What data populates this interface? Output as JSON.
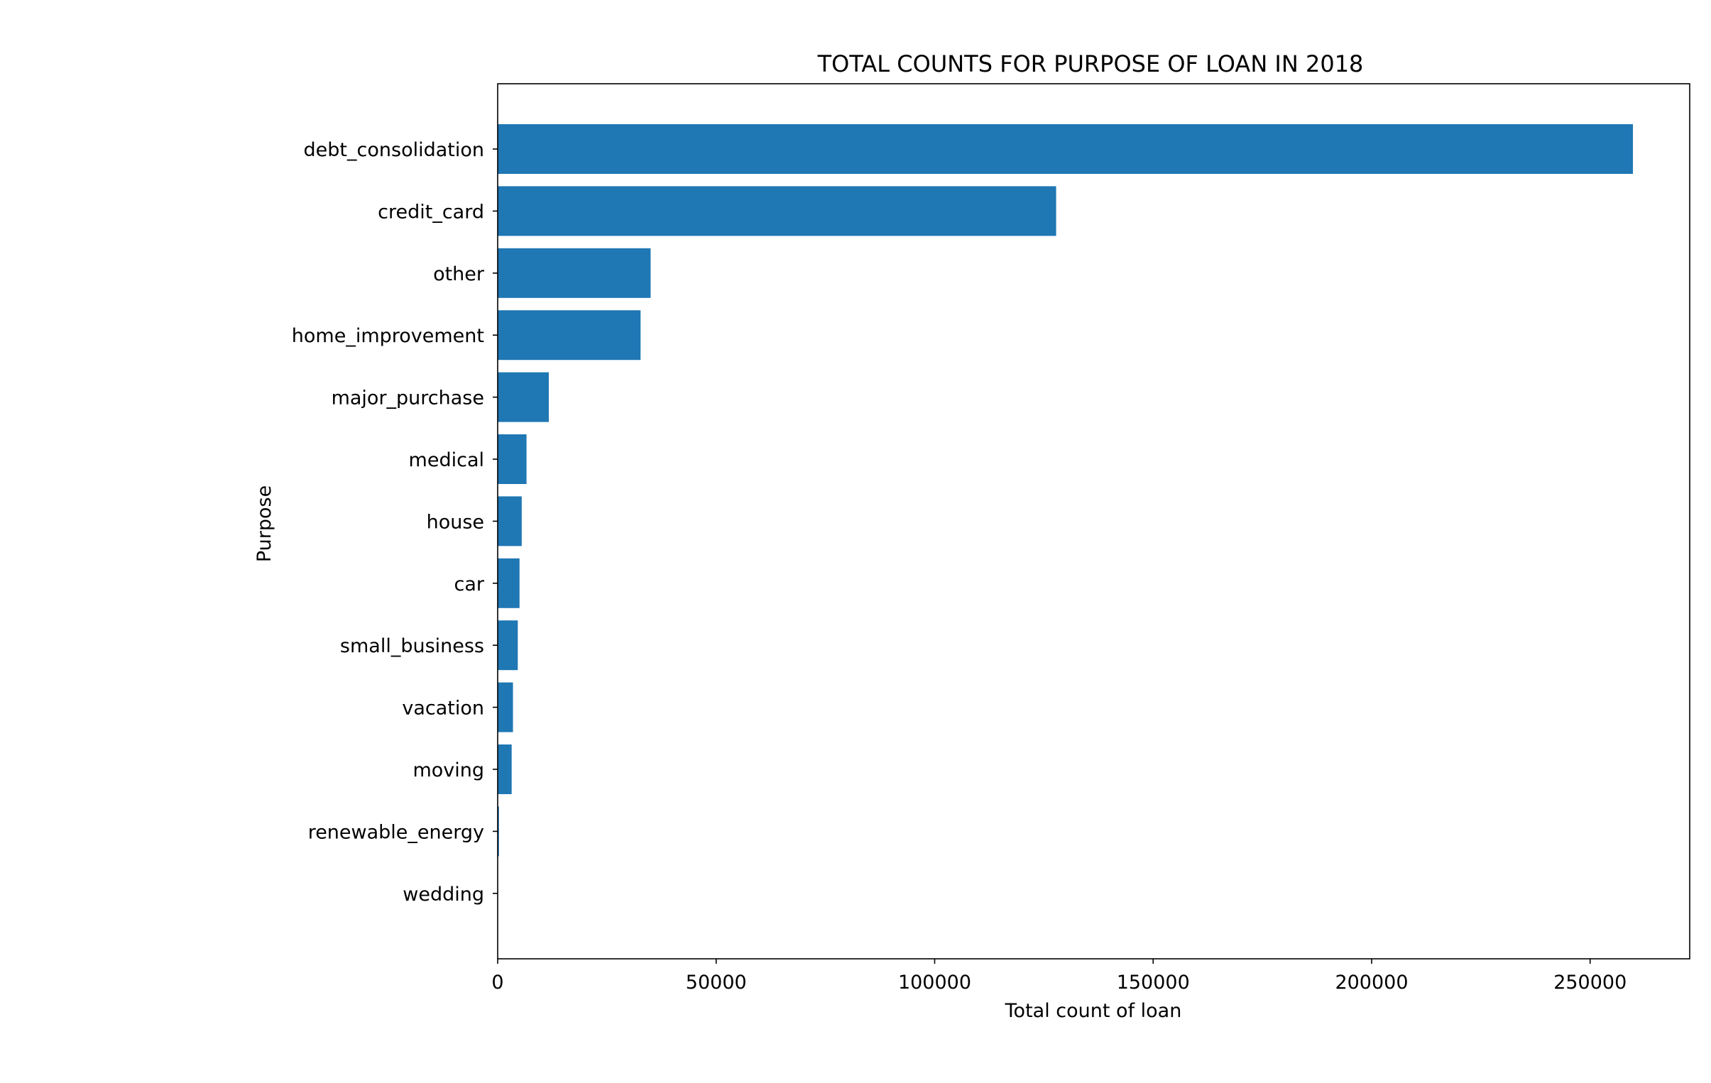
{
  "chart_data": {
    "type": "bar",
    "orientation": "horizontal",
    "title": "TOTAL COUNTS FOR PURPOSE OF LOAN IN 2018",
    "xlabel": "Total count of loan",
    "ylabel": "Purpose",
    "categories": [
      "debt_consolidation",
      "credit_card",
      "other",
      "home_improvement",
      "major_purchase",
      "medical",
      "house",
      "car",
      "small_business",
      "vacation",
      "moving",
      "renewable_energy",
      "wedding"
    ],
    "values": [
      259800,
      127800,
      35000,
      32700,
      11700,
      6600,
      5500,
      5000,
      4600,
      3500,
      3200,
      300,
      50
    ],
    "xlim": [
      0,
      272790
    ],
    "xticks": [
      0,
      50000,
      100000,
      150000,
      200000,
      250000
    ],
    "xtick_labels": [
      "0",
      "50000",
      "100000",
      "150000",
      "200000",
      "250000"
    ],
    "bar_color": "#1f77b4",
    "grid": false,
    "legend": "none"
  }
}
